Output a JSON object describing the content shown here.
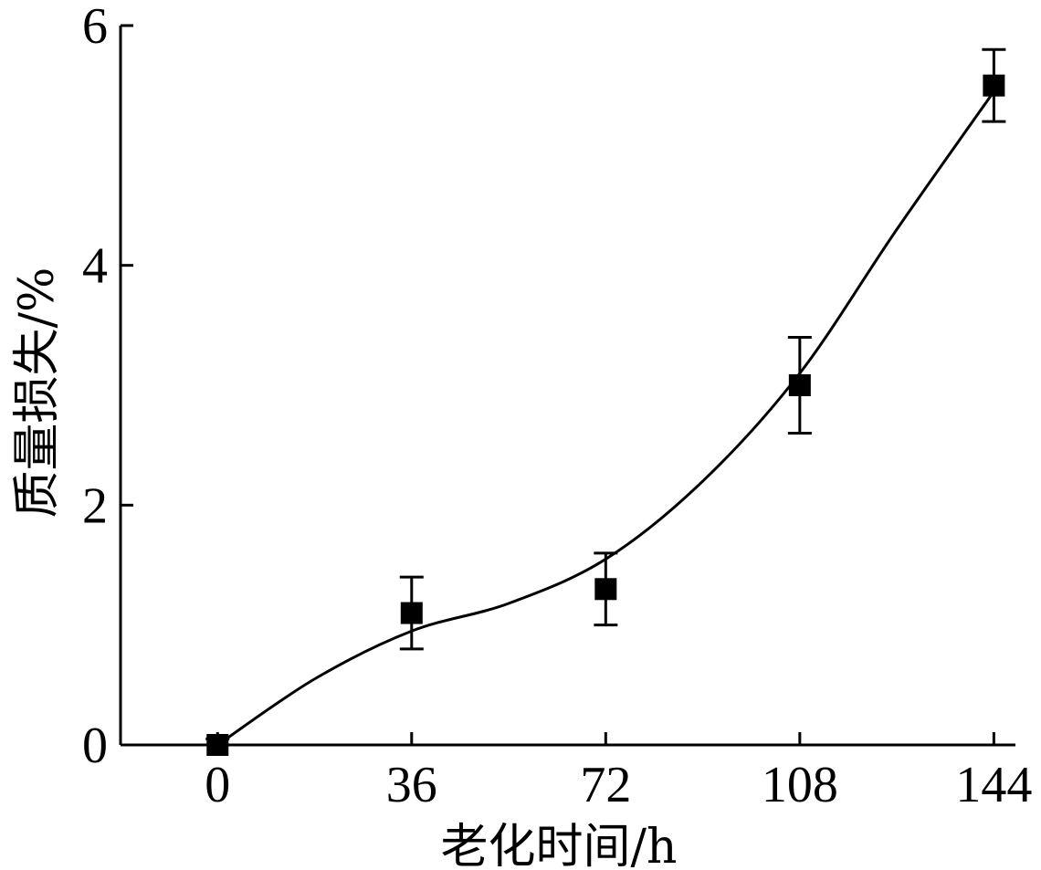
{
  "chart_data": {
    "type": "line",
    "xlabel": "老化时间/h",
    "ylabel": "质量损失/%",
    "x_ticks": [
      "0",
      "36",
      "72",
      "108",
      "144"
    ],
    "y_ticks": [
      "0",
      "2",
      "4",
      "6"
    ],
    "xlim": [
      -18,
      148
    ],
    "ylim": [
      0,
      6
    ],
    "grid": false,
    "series": [
      {
        "x": [
          0,
          36,
          72,
          108,
          144
        ],
        "y": [
          0,
          1.1,
          1.3,
          3.0,
          5.5
        ],
        "error": [
          0.05,
          0.3,
          0.3,
          0.4,
          0.3
        ],
        "marker": "square",
        "color": "#000000"
      }
    ],
    "fit_curve": {
      "x": [
        0,
        18,
        36,
        54,
        72,
        90,
        108,
        126,
        144
      ],
      "y": [
        0,
        0.55,
        0.95,
        1.18,
        1.55,
        2.2,
        3.1,
        4.3,
        5.45
      ]
    }
  }
}
